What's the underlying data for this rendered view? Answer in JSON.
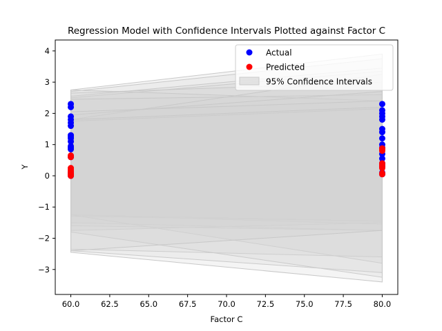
{
  "chart_data": {
    "type": "scatter",
    "title": "Regression Model with Confidence Intervals Plotted against Factor C",
    "xlabel": "Factor C",
    "ylabel": "Y",
    "xlim": [
      59.0,
      81.0
    ],
    "ylim": [
      -3.8,
      4.35
    ],
    "x_ticks": [
      "60.0",
      "62.5",
      "65.0",
      "67.5",
      "70.0",
      "72.5",
      "75.0",
      "77.5",
      "80.0"
    ],
    "y_ticks": [
      "−3",
      "−2",
      "−1",
      "0",
      "1",
      "2",
      "3",
      "4"
    ],
    "grid": false,
    "legend_position": "top-right",
    "legend": [
      "Actual",
      "Predicted",
      "95% Confidence Intervals"
    ],
    "colors": {
      "actual": "#0000ff",
      "predicted": "#ff0000",
      "ci_fill": "#d3d3d3",
      "ci_edge": "#c8c8c8"
    },
    "series": [
      {
        "name": "Actual",
        "x": [
          60,
          60,
          60,
          60,
          60,
          60,
          60,
          60,
          60,
          60,
          60,
          60,
          60,
          60,
          60,
          60,
          60,
          80,
          80,
          80,
          80,
          80,
          80,
          80,
          80,
          80,
          80,
          80,
          80,
          80,
          80,
          80,
          80
        ],
        "y": [
          2.3,
          2.2,
          1.9,
          1.8,
          1.7,
          1.6,
          1.3,
          1.25,
          1.2,
          1.1,
          0.95,
          0.9,
          0.85,
          0.6,
          0.1,
          0.05,
          0.0,
          2.3,
          2.1,
          2.0,
          1.9,
          1.8,
          1.5,
          1.4,
          1.2,
          1.0,
          0.9,
          0.7,
          0.55,
          0.4,
          0.3,
          0.1,
          0.05
        ]
      },
      {
        "name": "Predicted",
        "x": [
          60,
          60,
          60,
          60,
          60,
          60,
          60,
          60,
          60,
          80,
          80,
          80,
          80,
          80,
          80,
          80,
          80,
          80
        ],
        "y": [
          0.65,
          0.6,
          0.25,
          0.2,
          0.15,
          0.1,
          0.05,
          0.02,
          0.0,
          0.88,
          0.85,
          0.8,
          0.4,
          0.35,
          0.3,
          0.25,
          0.08,
          0.05
        ]
      }
    ],
    "confidence_intervals": [
      {
        "lower": [
          -1.25,
          -1.45
        ],
        "upper": [
          2.75,
          3.9
        ]
      },
      {
        "lower": [
          -1.25,
          -1.55
        ],
        "upper": [
          2.7,
          3.75
        ]
      },
      {
        "lower": [
          -1.3,
          -1.45
        ],
        "upper": [
          2.55,
          3.45
        ]
      },
      {
        "lower": [
          -1.5,
          -1.75
        ],
        "upper": [
          2.5,
          3.35
        ]
      },
      {
        "lower": [
          -1.6,
          -1.75
        ],
        "upper": [
          2.65,
          3.0
        ]
      },
      {
        "lower": [
          -1.75,
          -1.5
        ],
        "upper": [
          2.75,
          2.4
        ]
      },
      {
        "lower": [
          -1.25,
          -2.8
        ],
        "upper": [
          2.45,
          2.6
        ]
      },
      {
        "lower": [
          -2.35,
          -2.6
        ],
        "upper": [
          1.8,
          3.25
        ]
      },
      {
        "lower": [
          -2.4,
          -3.1
        ],
        "upper": [
          1.95,
          2.7
        ]
      },
      {
        "lower": [
          -1.8,
          -3.25
        ],
        "upper": [
          2.05,
          2.4
        ]
      },
      {
        "lower": [
          -2.45,
          -3.4
        ],
        "upper": [
          1.75,
          2.15
        ]
      },
      {
        "lower": [
          -2.4,
          -1.75
        ],
        "upper": [
          1.8,
          2.2
        ]
      }
    ]
  }
}
